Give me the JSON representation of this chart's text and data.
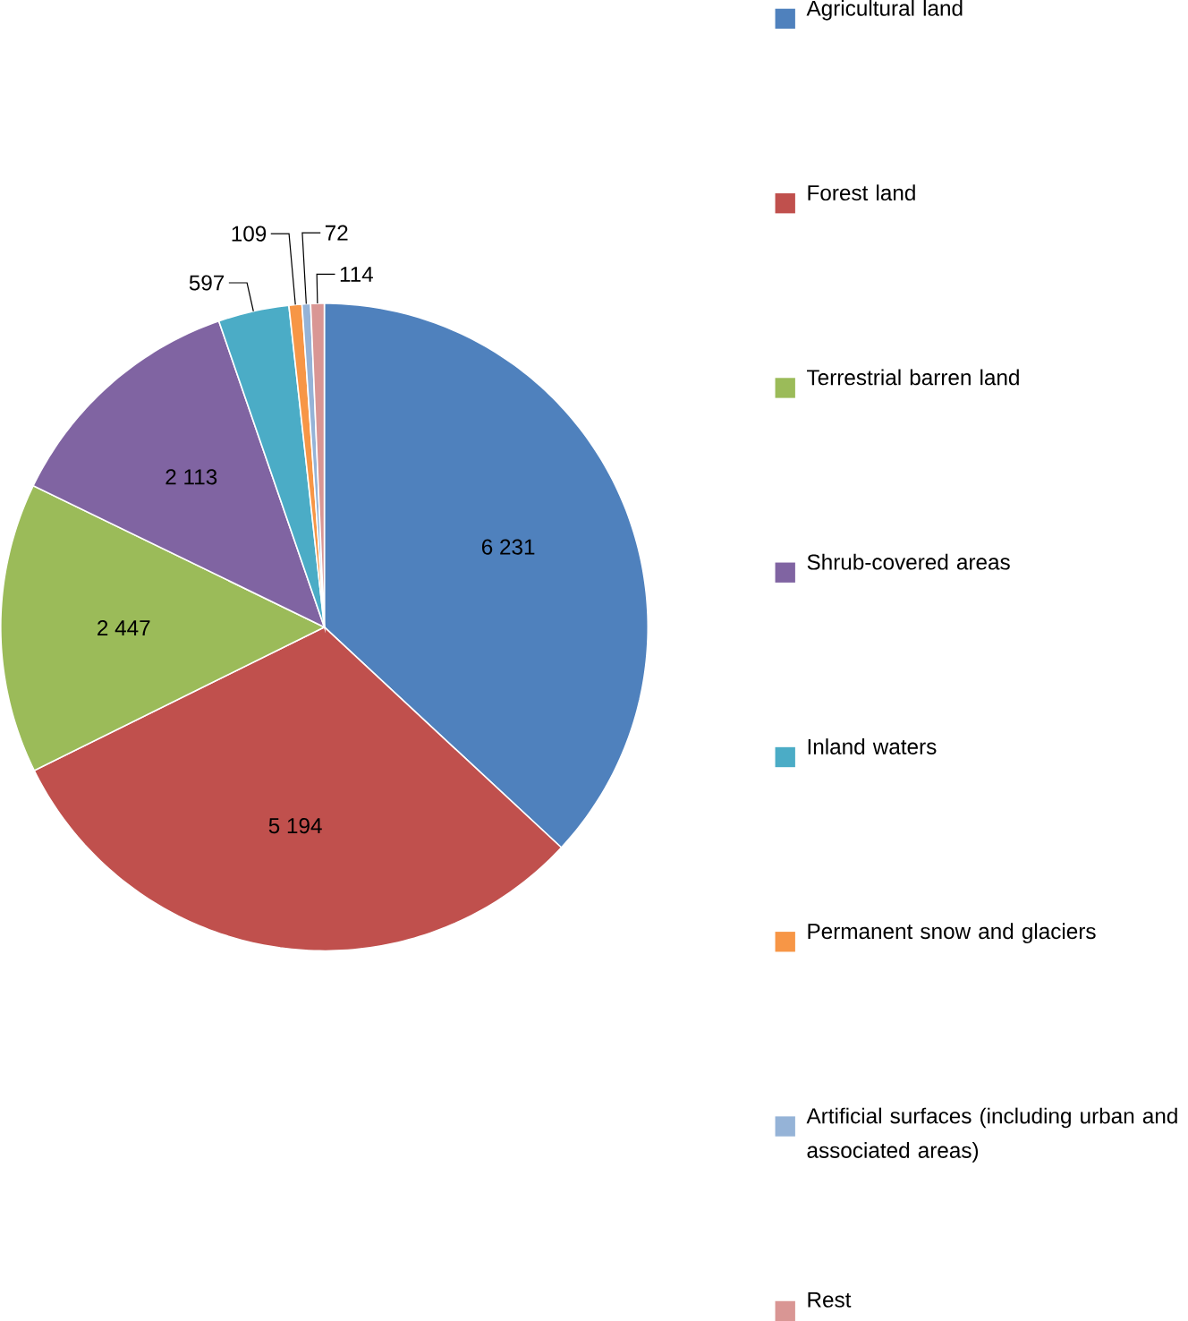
{
  "chart_data": {
    "type": "pie",
    "categories": [
      "Agricultural land",
      "Forest land",
      "Terrestrial barren land",
      "Shrub-covered areas",
      "Inland waters",
      "Permanent snow and glaciers",
      "Artificial surfaces (including urban and associated areas)",
      "Rest"
    ],
    "values": [
      6231,
      5194,
      2447,
      2113,
      597,
      109,
      72,
      114
    ],
    "value_labels": [
      "6 231",
      "5 194",
      "2 447",
      "2 113",
      "597",
      "109",
      "72",
      "114"
    ],
    "colors": [
      "#4f81bd",
      "#c0504d",
      "#9bbb59",
      "#8064a2",
      "#4bacc6",
      "#f79646",
      "#95b3d7",
      "#d99694"
    ],
    "legend": "right"
  }
}
